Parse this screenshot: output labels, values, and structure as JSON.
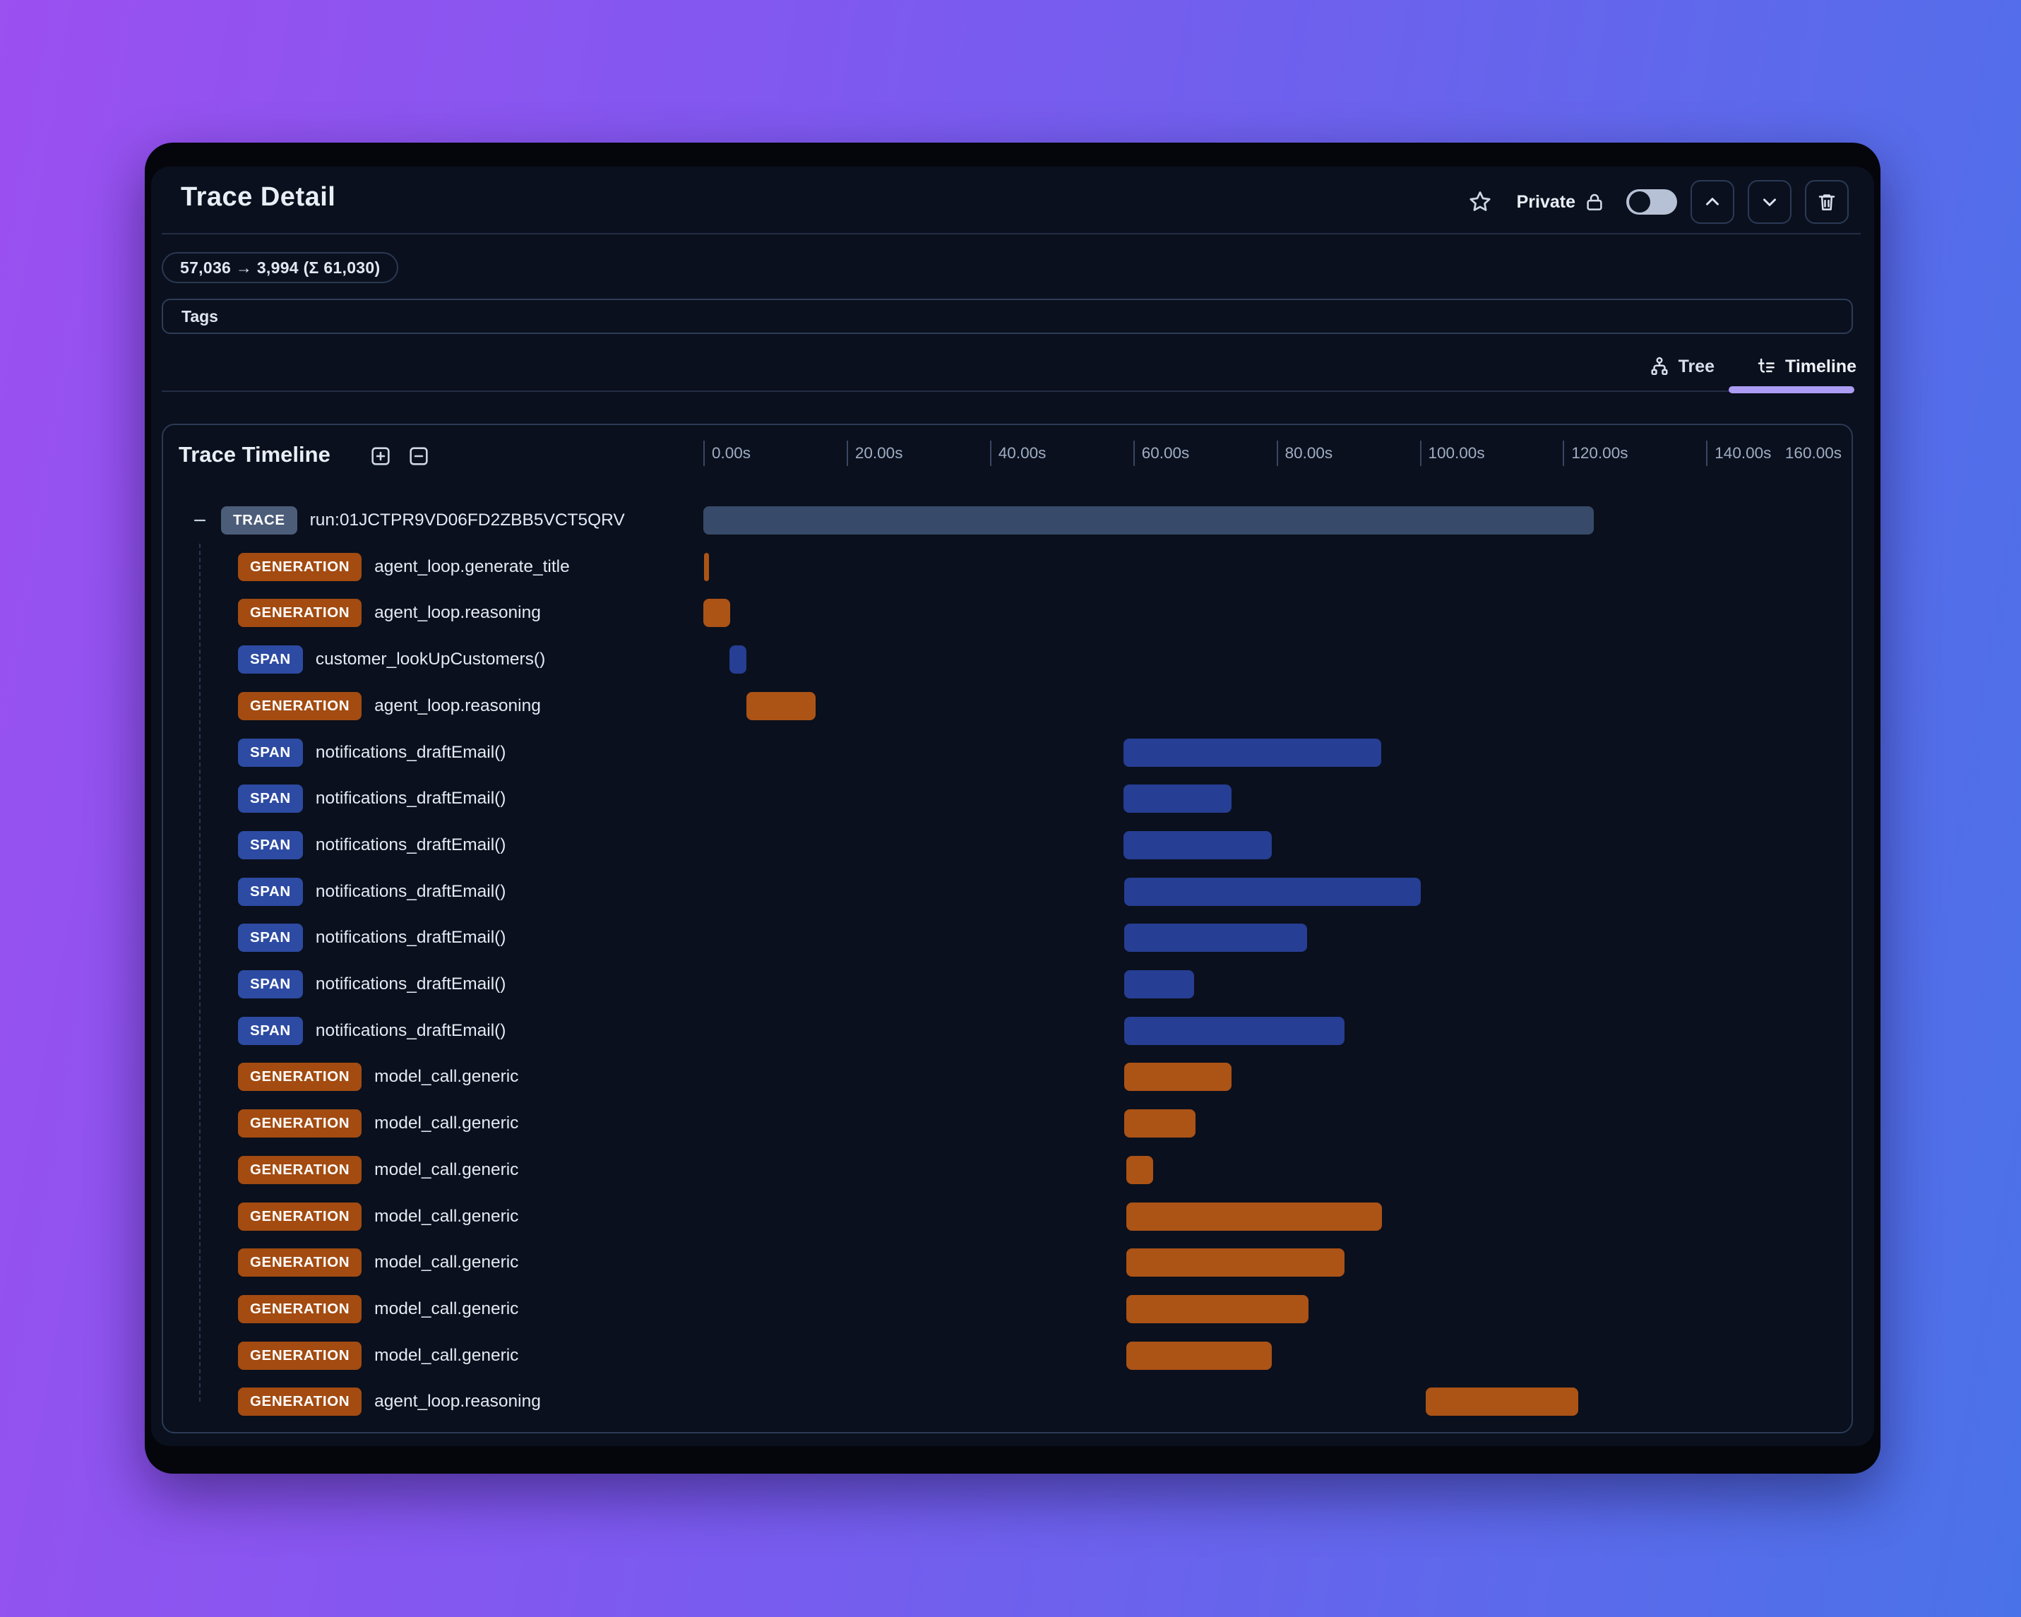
{
  "header": {
    "title": "Trace Detail",
    "privacy_label": "Private",
    "toggle_state": "off",
    "buttons": [
      {
        "name": "previous",
        "icon": "chevron-up-icon"
      },
      {
        "name": "next",
        "icon": "chevron-down-icon"
      },
      {
        "name": "delete",
        "icon": "trash-icon"
      }
    ]
  },
  "token_usage_badge": "57,036 → 3,994 (Σ 61,030)",
  "tags": {
    "label": "Tags"
  },
  "view_tabs": [
    {
      "label": "Tree",
      "icon": "tree-hierarchy-icon",
      "active": false
    },
    {
      "label": "Timeline",
      "icon": "timeline-list-icon",
      "active": true
    }
  ],
  "timeline": {
    "title": "Trace Timeline",
    "controls": [
      {
        "name": "expand-all",
        "icon": "plus-square-icon"
      },
      {
        "name": "collapse-all",
        "icon": "minus-square-icon"
      }
    ],
    "axis": {
      "unit": "seconds",
      "range_s": [
        0,
        160
      ],
      "ticks": [
        "0.00s",
        "20.00s",
        "40.00s",
        "60.00s",
        "80.00s",
        "100.00s",
        "120.00s",
        "140.00s"
      ],
      "end_label": "160.00s"
    },
    "rows": [
      {
        "type": "TRACE",
        "name": "run:01JCTPR9VD06FD2ZBB5VCT5QRV",
        "depth": 0,
        "collapsible": true,
        "bar": {
          "start_s": 0,
          "end_s": 124.4,
          "color": "trace"
        }
      },
      {
        "type": "GENERATION",
        "name": "agent_loop.generate_title",
        "depth": 1,
        "bar": {
          "start_s": 0.1,
          "end_s": 0.8,
          "color": "generation"
        }
      },
      {
        "type": "GENERATION",
        "name": "agent_loop.reasoning",
        "depth": 1,
        "bar": {
          "start_s": 0,
          "end_s": 3.7,
          "color": "generation"
        }
      },
      {
        "type": "SPAN",
        "name": "customer_lookUpCustomers()",
        "depth": 1,
        "bar": {
          "start_s": 3.6,
          "end_s": 6.0,
          "color": "span"
        }
      },
      {
        "type": "GENERATION",
        "name": "agent_loop.reasoning",
        "depth": 1,
        "bar": {
          "start_s": 6.0,
          "end_s": 15.7,
          "color": "generation"
        }
      },
      {
        "type": "SPAN",
        "name": "notifications_draftEmail()",
        "depth": 1,
        "bar": {
          "start_s": 58.7,
          "end_s": 94.7,
          "color": "span"
        }
      },
      {
        "type": "SPAN",
        "name": "notifications_draftEmail()",
        "depth": 1,
        "bar": {
          "start_s": 58.7,
          "end_s": 73.8,
          "color": "span"
        }
      },
      {
        "type": "SPAN",
        "name": "notifications_draftEmail()",
        "depth": 1,
        "bar": {
          "start_s": 58.7,
          "end_s": 79.4,
          "color": "span"
        }
      },
      {
        "type": "SPAN",
        "name": "notifications_draftEmail()",
        "depth": 1,
        "bar": {
          "start_s": 58.8,
          "end_s": 100.2,
          "color": "span"
        }
      },
      {
        "type": "SPAN",
        "name": "notifications_draftEmail()",
        "depth": 1,
        "bar": {
          "start_s": 58.8,
          "end_s": 84.3,
          "color": "span"
        }
      },
      {
        "type": "SPAN",
        "name": "notifications_draftEmail()",
        "depth": 1,
        "bar": {
          "start_s": 58.8,
          "end_s": 68.5,
          "color": "span"
        }
      },
      {
        "type": "SPAN",
        "name": "notifications_draftEmail()",
        "depth": 1,
        "bar": {
          "start_s": 58.8,
          "end_s": 89.5,
          "color": "span"
        }
      },
      {
        "type": "GENERATION",
        "name": "model_call.generic",
        "depth": 1,
        "bar": {
          "start_s": 58.8,
          "end_s": 73.8,
          "color": "generation"
        }
      },
      {
        "type": "GENERATION",
        "name": "model_call.generic",
        "depth": 1,
        "bar": {
          "start_s": 58.8,
          "end_s": 68.7,
          "color": "generation"
        }
      },
      {
        "type": "GENERATION",
        "name": "model_call.generic",
        "depth": 1,
        "bar": {
          "start_s": 59.1,
          "end_s": 62.8,
          "color": "generation"
        }
      },
      {
        "type": "GENERATION",
        "name": "model_call.generic",
        "depth": 1,
        "bar": {
          "start_s": 59.1,
          "end_s": 94.8,
          "color": "generation"
        }
      },
      {
        "type": "GENERATION",
        "name": "model_call.generic",
        "depth": 1,
        "bar": {
          "start_s": 59.1,
          "end_s": 89.5,
          "color": "generation"
        }
      },
      {
        "type": "GENERATION",
        "name": "model_call.generic",
        "depth": 1,
        "bar": {
          "start_s": 59.1,
          "end_s": 84.5,
          "color": "generation"
        }
      },
      {
        "type": "GENERATION",
        "name": "model_call.generic",
        "depth": 1,
        "bar": {
          "start_s": 59.1,
          "end_s": 79.4,
          "color": "generation"
        }
      },
      {
        "type": "GENERATION",
        "name": "agent_loop.reasoning",
        "depth": 1,
        "bar": {
          "start_s": 100.9,
          "end_s": 122.2,
          "color": "generation"
        }
      }
    ]
  },
  "colors": {
    "accent_tab_underline": "#ac9cf4",
    "badge": {
      "TRACE": "#4c5d7a",
      "GENERATION": "#a34b11",
      "SPAN": "#2d4ba3"
    },
    "bar": {
      "trace": "#374a69",
      "generation": "#ac5316",
      "span": "#263e93"
    },
    "toggle_track": "#b7c1d6"
  }
}
